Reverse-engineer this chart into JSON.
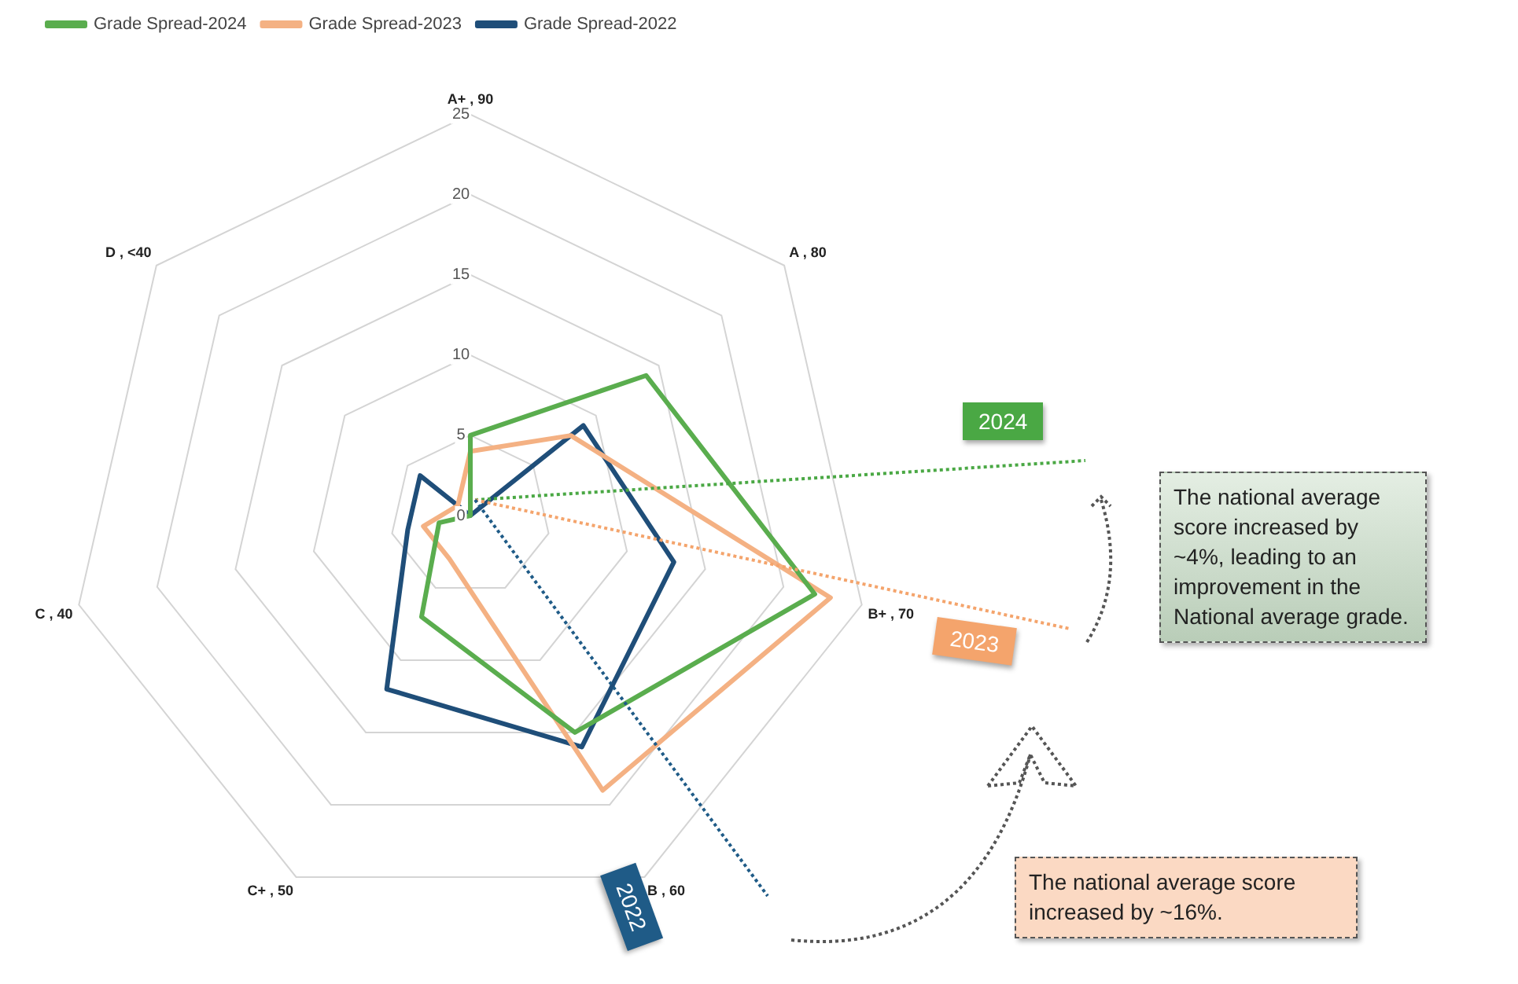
{
  "chart_data": {
    "type": "radar",
    "categories": [
      "A+ , 90",
      "A , 80",
      "B+ , 70",
      "B , 60",
      "C+ , 50",
      "C , 40",
      "D , <40"
    ],
    "series": [
      {
        "name": "Grade Spread-2024",
        "color": "#5aad4e",
        "values": [
          5,
          14,
          22,
          15,
          7,
          2,
          0
        ]
      },
      {
        "name": "Grade Spread-2023",
        "color": "#f4b183",
        "values": [
          4,
          8,
          23,
          19,
          3,
          3,
          1
        ]
      },
      {
        "name": "Grade Spread-2022",
        "color": "#1f4e79",
        "values": [
          0,
          9,
          13,
          16,
          12,
          4,
          4
        ]
      }
    ],
    "ylim": [
      0,
      25
    ],
    "yticks": [
      0,
      5,
      10,
      15,
      20,
      25
    ],
    "grid": true,
    "legend": "top",
    "marker": "none",
    "line_style": "solid",
    "annotations": [
      "2024",
      "2023",
      "2022",
      "The national average score increased by ~4%, leading to an improvement in the National average grade.",
      "The national average score increased by ~16%."
    ]
  }
}
